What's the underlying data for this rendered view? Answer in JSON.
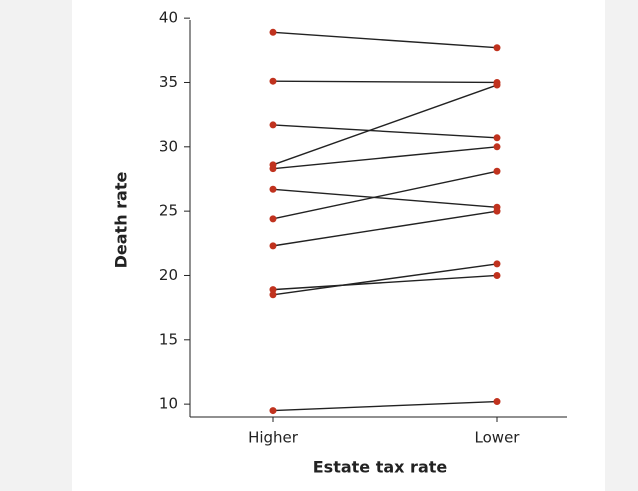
{
  "chart_data": {
    "type": "line",
    "x_label": "Estate tax rate",
    "y_label": "Death rate",
    "categories": [
      "Higher",
      "Lower"
    ],
    "line_color": "#222222",
    "marker_color": "#c0321e",
    "series": [
      {
        "values": [
          38.9,
          37.7
        ]
      },
      {
        "values": [
          35.1,
          35.0
        ]
      },
      {
        "values": [
          31.7,
          30.7
        ]
      },
      {
        "values": [
          28.6,
          34.8
        ]
      },
      {
        "values": [
          28.3,
          30.0
        ]
      },
      {
        "values": [
          26.7,
          25.3
        ]
      },
      {
        "values": [
          24.4,
          28.1
        ]
      },
      {
        "values": [
          22.3,
          25.0
        ]
      },
      {
        "values": [
          18.9,
          20.0
        ]
      },
      {
        "values": [
          18.5,
          20.9
        ]
      },
      {
        "values": [
          9.5,
          10.2
        ]
      }
    ],
    "ylim": [
      9,
      40.4
    ],
    "yticks": [
      10,
      15,
      20,
      25,
      30,
      35,
      40
    ]
  }
}
